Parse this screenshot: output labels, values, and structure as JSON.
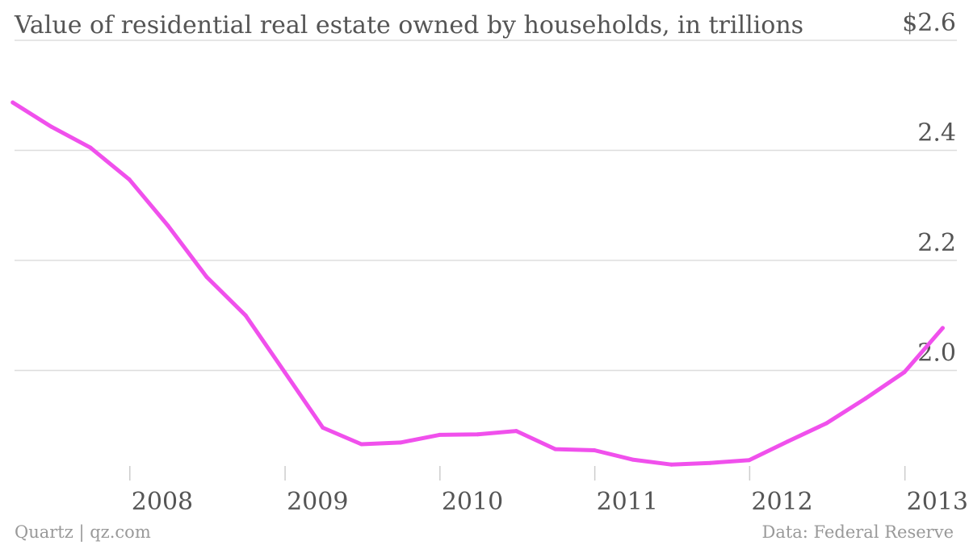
{
  "chart_data": {
    "type": "line",
    "title": "Value of residential real estate owned by households, in trillions",
    "xlabel": "",
    "ylabel": "",
    "ylim": [
      1.8,
      2.6
    ],
    "xlim": [
      "2007-03-01",
      "2013-06-01"
    ],
    "y_ticks": [
      {
        "value": 2.6,
        "label": "$2.6"
      },
      {
        "value": 2.4,
        "label": "2.4"
      },
      {
        "value": 2.2,
        "label": "2.2"
      },
      {
        "value": 2.0,
        "label": "2.0"
      }
    ],
    "x_ticks": [
      {
        "date": "2008-01-01",
        "label": "2008"
      },
      {
        "date": "2009-01-01",
        "label": "2009"
      },
      {
        "date": "2010-01-01",
        "label": "2010"
      },
      {
        "date": "2011-01-01",
        "label": "2011"
      },
      {
        "date": "2012-01-01",
        "label": "2012"
      },
      {
        "date": "2013-01-01",
        "label": "2013"
      }
    ],
    "grid": true,
    "line_color": "#f050ec",
    "series": [
      {
        "x": [
          "2007-03-31",
          "2007-06-30",
          "2007-09-30",
          "2007-12-31",
          "2008-03-31",
          "2008-06-30",
          "2008-09-30",
          "2008-12-31",
          "2009-03-31",
          "2009-06-30",
          "2009-09-30",
          "2009-12-31",
          "2010-03-31",
          "2010-06-30",
          "2010-09-30",
          "2010-12-31",
          "2011-03-31",
          "2011-06-30",
          "2011-09-30",
          "2011-12-31",
          "2012-03-31",
          "2012-06-30",
          "2012-09-30",
          "2012-12-31",
          "2013-03-31"
        ],
        "values": [
          2.487,
          2.443,
          2.405,
          2.347,
          2.263,
          2.17,
          2.1,
          1.997,
          1.896,
          1.866,
          1.869,
          1.883,
          1.884,
          1.89,
          1.857,
          1.855,
          1.838,
          1.829,
          1.832,
          1.837,
          1.871,
          1.904,
          1.949,
          1.997,
          2.077
        ]
      }
    ]
  },
  "footer": {
    "source_left": "Quartz | qz.com",
    "source_right": "Data: Federal Reserve"
  }
}
